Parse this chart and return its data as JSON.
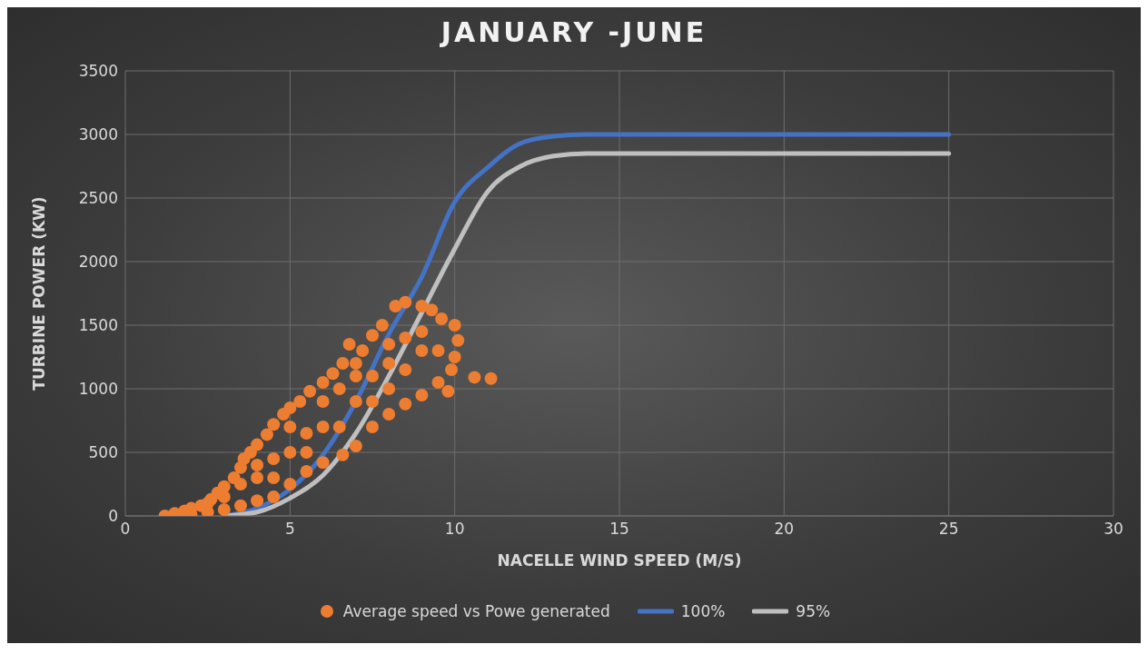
{
  "chart_data": {
    "type": "scatter",
    "title": "JANUARY -JUNE",
    "xlabel": "NACELLE WIND SPEED (M/S)",
    "ylabel": "TURBINE POWER (KW)",
    "xlim": [
      0,
      30
    ],
    "xticks": [
      0,
      5,
      10,
      15,
      20,
      25,
      30
    ],
    "ylim": [
      0,
      3500
    ],
    "yticks": [
      0,
      500,
      1000,
      1500,
      2000,
      2500,
      3000,
      3500
    ],
    "grid": true,
    "legend": "bottom",
    "series": [
      {
        "name": "Average speed vs Powe generated",
        "marker": "circle",
        "color": "#ed7d31",
        "x": [
          1.2,
          1.5,
          1.8,
          2,
          2.3,
          2.6,
          2.8,
          3,
          3.3,
          3.5,
          3.6,
          3.8,
          4,
          4.3,
          4.5,
          4.8,
          5,
          5.3,
          5.6,
          6,
          6.3,
          6.6,
          6.8,
          7.2,
          7.5,
          7.8,
          8.2,
          8.5,
          9,
          9.3,
          9.6,
          10,
          10.1,
          10,
          9.9,
          9.5,
          9.8,
          10.6,
          11.1,
          9,
          8.5,
          8,
          7.5,
          7,
          6.6,
          6,
          5.5,
          5,
          4.5,
          4,
          3.5,
          3,
          2.5,
          2,
          5,
          6,
          7,
          8,
          9,
          4,
          3,
          6.5,
          7.5,
          8.5,
          5.5,
          4.5,
          7,
          8,
          2.5,
          3.5,
          4.5,
          5.5,
          6,
          6.5,
          7,
          7.5,
          8,
          8.5,
          9,
          9.5,
          5,
          4
        ],
        "values": [
          0,
          20,
          40,
          60,
          80,
          130,
          180,
          230,
          300,
          380,
          450,
          500,
          560,
          640,
          720,
          800,
          850,
          900,
          980,
          1050,
          1120,
          1200,
          1350,
          1300,
          1420,
          1500,
          1650,
          1680,
          1650,
          1620,
          1550,
          1500,
          1380,
          1250,
          1150,
          1050,
          980,
          1090,
          1080,
          950,
          880,
          800,
          700,
          550,
          480,
          420,
          350,
          250,
          150,
          120,
          80,
          50,
          30,
          10,
          500,
          700,
          900,
          1200,
          1300,
          300,
          150,
          1000,
          1100,
          1400,
          650,
          450,
          1100,
          1000,
          100,
          250,
          300,
          500,
          900,
          700,
          1200,
          900,
          1350,
          1150,
          1450,
          1300,
          700,
          400
        ]
      },
      {
        "name": "100%",
        "type": "line",
        "color": "#4472c4",
        "x": [
          3,
          4,
          5,
          6,
          7,
          8,
          9,
          10,
          11,
          12,
          13,
          14,
          15,
          25
        ],
        "values": [
          0,
          60,
          210,
          480,
          900,
          1430,
          1880,
          2470,
          2740,
          2930,
          2985,
          3000,
          3000,
          3000
        ]
      },
      {
        "name": "95%",
        "type": "line",
        "color": "#bfbfbf",
        "x": [
          3,
          4,
          5,
          6,
          7,
          8,
          9,
          10,
          11,
          12,
          13,
          14,
          25
        ],
        "values": [
          0,
          30,
          140,
          320,
          650,
          1100,
          1600,
          2100,
          2550,
          2750,
          2830,
          2850,
          2850
        ]
      }
    ]
  }
}
